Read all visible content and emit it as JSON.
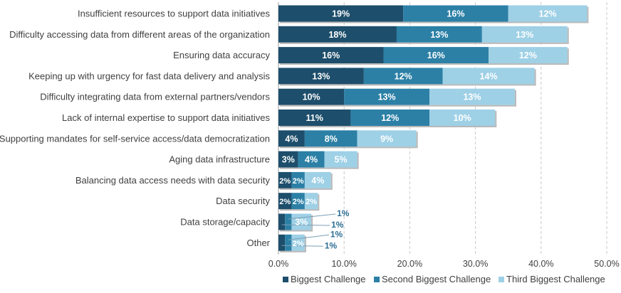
{
  "colors": {
    "biggest": "#1d4e6b",
    "second": "#2c80a6",
    "third": "#9ed0e6",
    "grid": "#c8c8c8",
    "axis_text": "#404040",
    "callout": "#2c6e95"
  },
  "chart_data": {
    "type": "bar",
    "orientation": "horizontal",
    "stacked": true,
    "categories": [
      "Insufficient resources to support data initiatives",
      "Difficulty accessing data from different areas of the organization",
      "Ensuring data accuracy",
      "Keeping up with urgency for fast data delivery and analysis",
      "Difficulty integrating data from external partners/vendors",
      "Lack of internal expertise to support data initiatives",
      "Supporting mandates for self-service access/data democratization",
      "Aging data infrastructure",
      "Balancing data access needs with data security",
      "Data security",
      "Data storage/capacity",
      "Other"
    ],
    "series": [
      {
        "name": "Biggest Challenge",
        "values": [
          19,
          18,
          16,
          13,
          10,
          11,
          4,
          3,
          2,
          2,
          1,
          1
        ],
        "labels": [
          "19%",
          "18%",
          "16%",
          "13%",
          "10%",
          "11%",
          "4%",
          "3%",
          "2%",
          "2%",
          "1%",
          "1%"
        ]
      },
      {
        "name": "Second Biggest Challenge",
        "values": [
          16,
          13,
          16,
          12,
          13,
          12,
          8,
          4,
          2,
          2,
          1,
          1
        ],
        "labels": [
          "16%",
          "13%",
          "16%",
          "12%",
          "13%",
          "12%",
          "8%",
          "4%",
          "2%",
          "2%",
          "1%",
          "1%"
        ]
      },
      {
        "name": "Third Biggest Challenge",
        "values": [
          12,
          13,
          12,
          14,
          13,
          10,
          9,
          5,
          4,
          2,
          3,
          2
        ],
        "labels": [
          "12%",
          "13%",
          "12%",
          "14%",
          "13%",
          "10%",
          "9%",
          "5%",
          "4%",
          "2%",
          "3%",
          "2%"
        ]
      }
    ],
    "xlim": [
      0,
      50
    ],
    "x_ticks": [
      "0.0%",
      "10.0%",
      "20.0%",
      "30.0%",
      "40.0%",
      "50.0%"
    ],
    "grid": "vertical dashed",
    "legend_position": "bottom",
    "title": "",
    "xlabel": "",
    "ylabel": ""
  }
}
